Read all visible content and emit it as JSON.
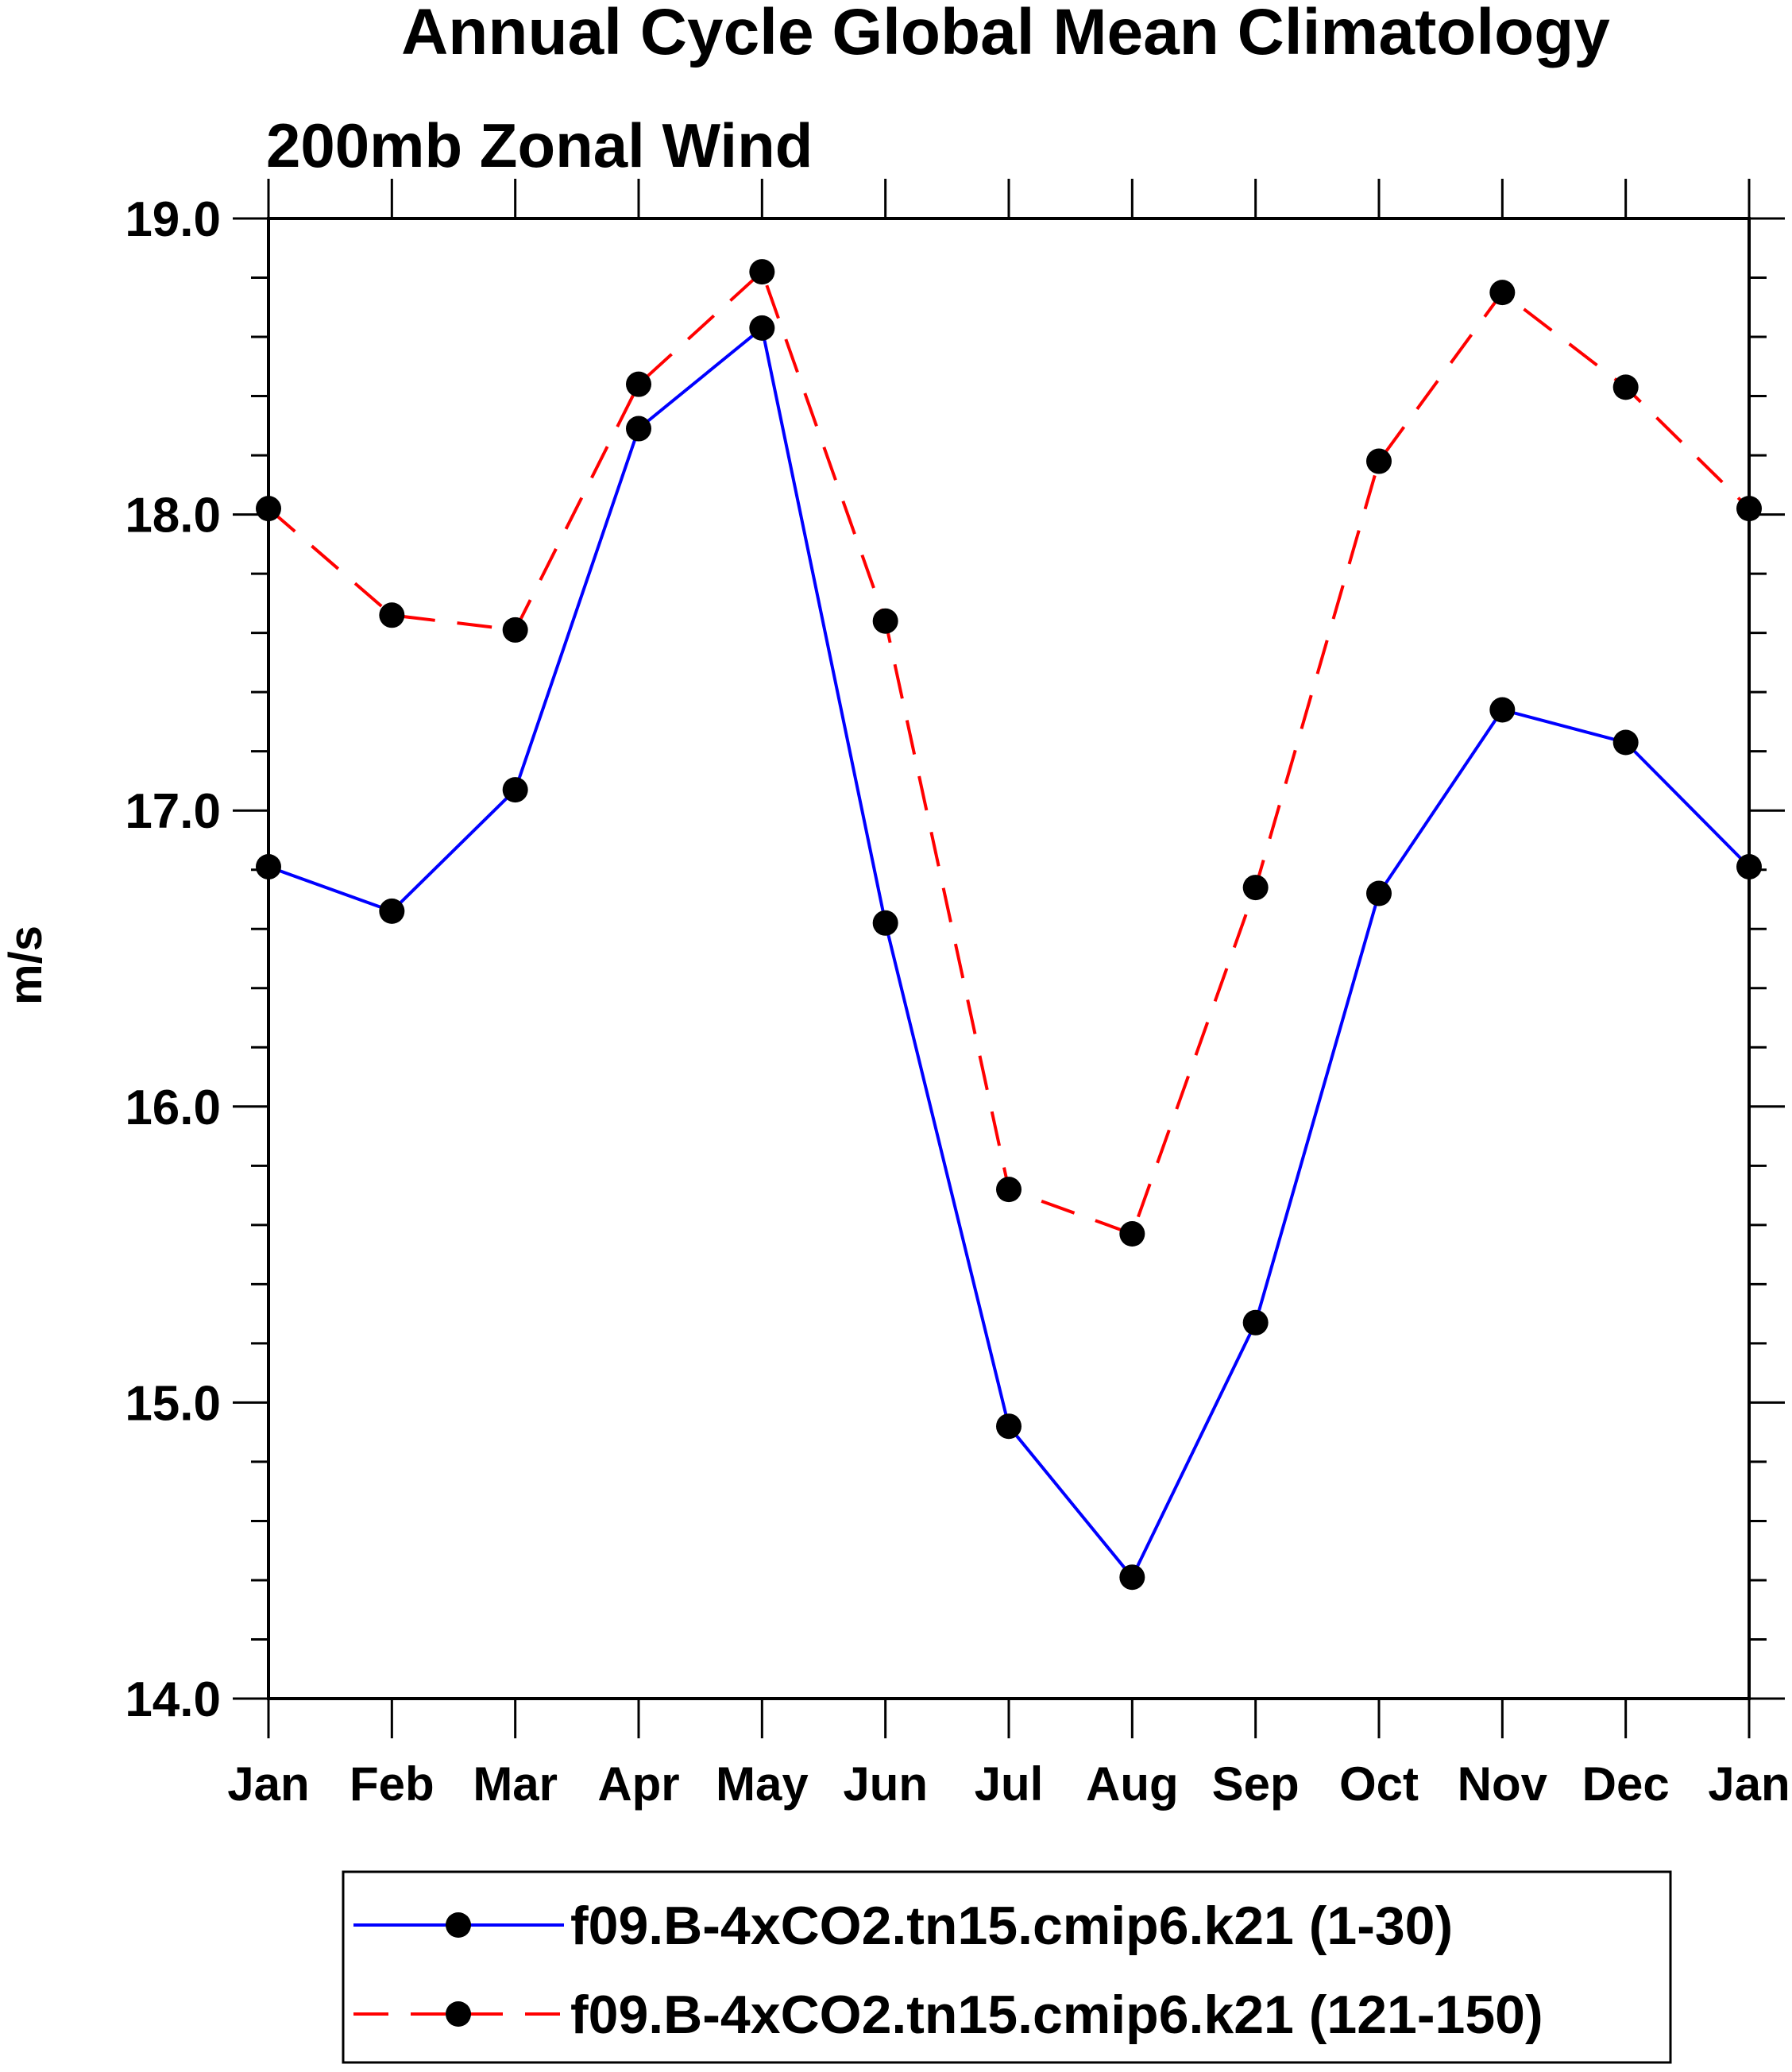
{
  "chart_data": {
    "type": "line",
    "title": "Annual Cycle Global Mean Climatology",
    "subtitle": "200mb Zonal Wind",
    "xlabel": "",
    "ylabel": "m/s",
    "categories": [
      "Jan",
      "Feb",
      "Mar",
      "Apr",
      "May",
      "Jun",
      "Jul",
      "Aug",
      "Sep",
      "Oct",
      "Nov",
      "Dec",
      "Jan"
    ],
    "ylim": [
      14.0,
      19.0
    ],
    "yticks": [
      "14.0",
      "15.0",
      "16.0",
      "17.0",
      "18.0",
      "19.0"
    ],
    "yticks_values": [
      14.0,
      15.0,
      16.0,
      17.0,
      18.0,
      19.0
    ],
    "grid": false,
    "legend_position": "bottom",
    "series": [
      {
        "name": "f09.B-4xCO2.tn15.cmip6.k21 (1-30)",
        "color": "#0000ff",
        "dash": "solid",
        "marker": "filled-circle",
        "values": [
          16.81,
          16.66,
          17.07,
          18.29,
          18.63,
          16.62,
          14.92,
          14.41,
          15.27,
          16.72,
          17.34,
          17.23,
          16.81
        ]
      },
      {
        "name": "f09.B-4xCO2.tn15.cmip6.k21 (121-150)",
        "color": "#ff0000",
        "dash": "dashed",
        "marker": "filled-circle",
        "values": [
          18.02,
          17.66,
          17.61,
          18.44,
          18.82,
          17.64,
          15.72,
          15.57,
          16.74,
          18.18,
          18.75,
          18.43,
          18.02
        ]
      }
    ]
  }
}
